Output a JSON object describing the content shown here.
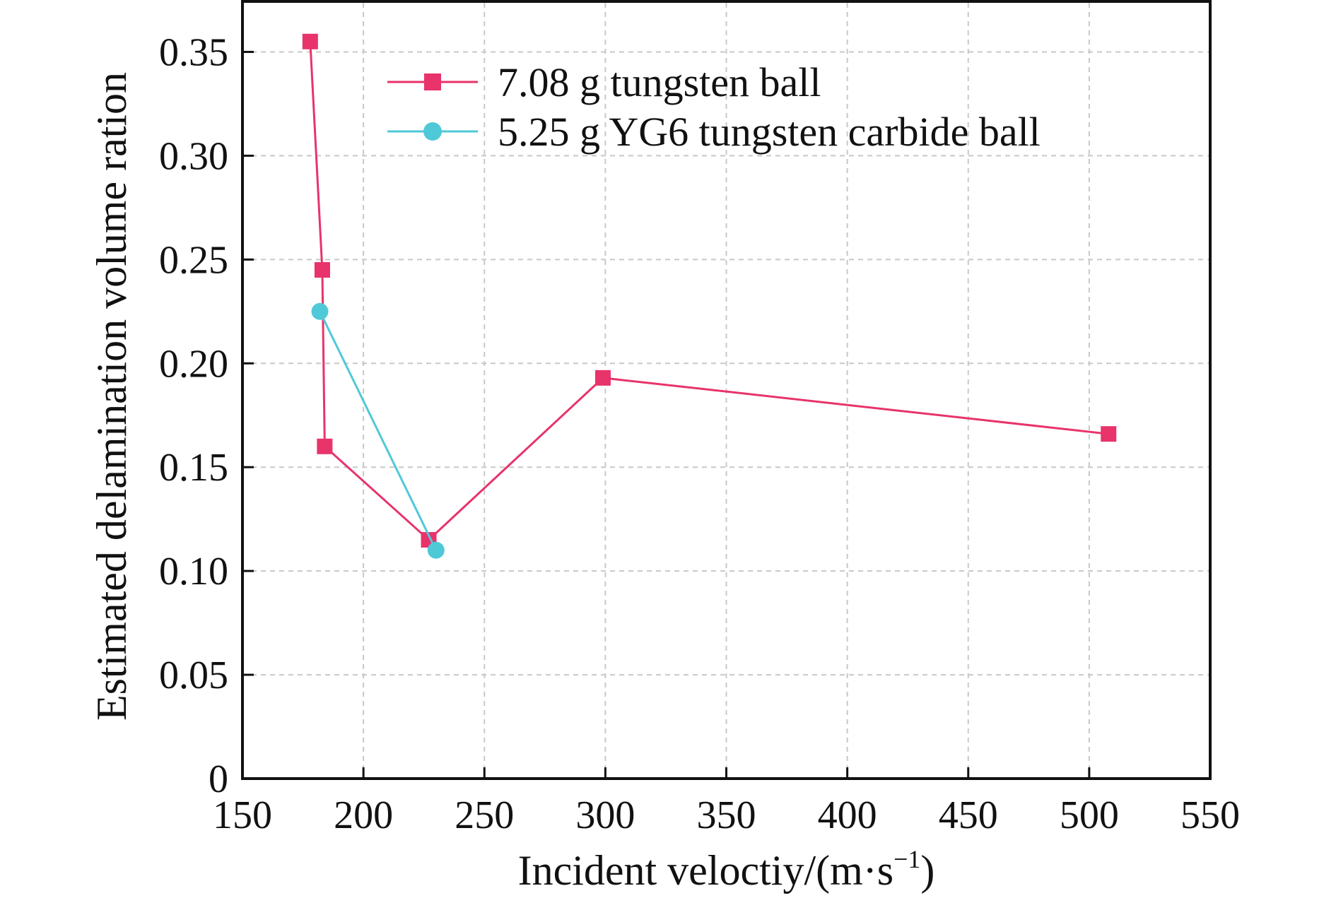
{
  "chart_data": {
    "type": "line",
    "title": "",
    "xlabel": "Incident velоctiy/(m·s",
    "xlabel_sup": "−1",
    "xlabel_tail": ")",
    "ylabel": "Estimated delamination volume ration",
    "xlim": [
      150,
      550
    ],
    "ylim": [
      0,
      0.375
    ],
    "x_ticks": [
      150,
      200,
      250,
      300,
      350,
      400,
      450,
      500,
      550
    ],
    "y_ticks": [
      0,
      0.05,
      0.1,
      0.15,
      0.2,
      0.25,
      0.3,
      0.35
    ],
    "x_tick_labels": [
      "150",
      "200",
      "250",
      "300",
      "350",
      "400",
      "450",
      "500",
      "550"
    ],
    "y_tick_labels": [
      "0",
      "0.05",
      "0.10",
      "0.15",
      "0.20",
      "0.25",
      "0.30",
      "0.35"
    ],
    "grid": true,
    "legend_position": "top-right",
    "series": [
      {
        "name": "7.08 g tungsten ball",
        "marker": "square",
        "color": "#e8336b",
        "x": [
          178,
          183,
          184,
          227,
          299,
          508
        ],
        "y": [
          0.355,
          0.245,
          0.16,
          0.115,
          0.193,
          0.166
        ]
      },
      {
        "name": "5.25 g YG6 tungsten carbide ball",
        "marker": "circle",
        "color": "#4fc9d8",
        "x": [
          182,
          230
        ],
        "y": [
          0.225,
          0.11
        ]
      }
    ]
  }
}
